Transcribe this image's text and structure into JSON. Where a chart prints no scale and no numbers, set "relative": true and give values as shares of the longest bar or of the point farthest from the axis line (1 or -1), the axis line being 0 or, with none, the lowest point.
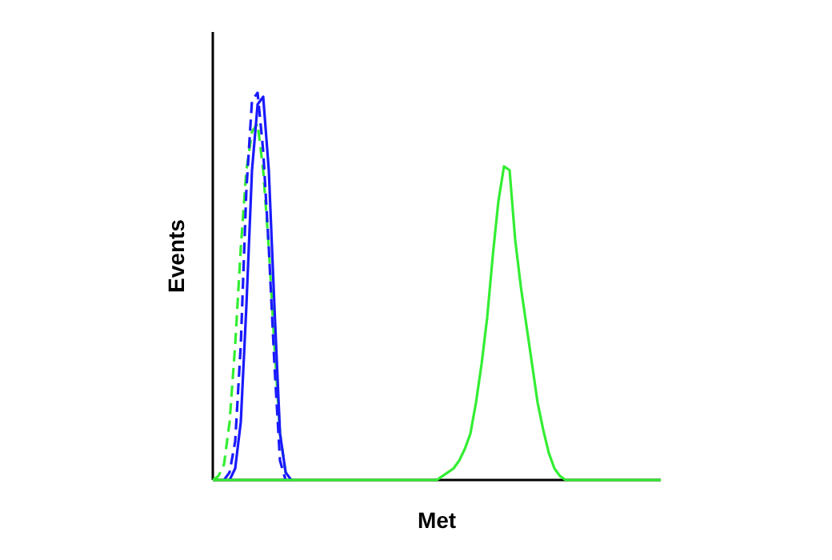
{
  "chart_data": {
    "type": "line",
    "relative": true,
    "xlabel": "Met",
    "ylabel": "Events",
    "categories": [
      null,
      null,
      null,
      null,
      null,
      null,
      null,
      null,
      null,
      null,
      null,
      null,
      null,
      null,
      null,
      null,
      null,
      null,
      null,
      null,
      null,
      null,
      null,
      null,
      null,
      null,
      null,
      null,
      null,
      null,
      null,
      null,
      null,
      null,
      null,
      null,
      null,
      null,
      null,
      null,
      null,
      null,
      null,
      null,
      null,
      null,
      null,
      null,
      null,
      null,
      null,
      null,
      null,
      null,
      null,
      null,
      null,
      null,
      null,
      null,
      null,
      null,
      null,
      null,
      null,
      null,
      null,
      null,
      null,
      null,
      null,
      null,
      null,
      null,
      null,
      null,
      null,
      null,
      null,
      null,
      null
    ],
    "series": [
      {
        "color": "#33ee33",
        "line_style": "dashed",
        "values": [
          0,
          0.01,
          0.04,
          0.15,
          0.35,
          0.6,
          0.8,
          0.9,
          0.92,
          0.8,
          0.6,
          0.35,
          0.12,
          0.02,
          0,
          null,
          null,
          null,
          null,
          null,
          null,
          null,
          null,
          null,
          null,
          null,
          null,
          null,
          null,
          null,
          null,
          null,
          null,
          null,
          null,
          null,
          null,
          null,
          null,
          null,
          null,
          null,
          null,
          null,
          null,
          null,
          null,
          null,
          null,
          null,
          null,
          null,
          null,
          null,
          null,
          null,
          null,
          null,
          null,
          null,
          null,
          null,
          null,
          null,
          null,
          null,
          null,
          null,
          null,
          null,
          null,
          null,
          null,
          null,
          null,
          null,
          null,
          null,
          null,
          null,
          null
        ]
      },
      {
        "color": "#1a1aff",
        "line_style": "dashed",
        "values": [
          null,
          null,
          0,
          0.02,
          0.1,
          0.35,
          0.75,
          0.98,
          1,
          0.85,
          0.6,
          0.3,
          0.05,
          0,
          null,
          null,
          null,
          null,
          null,
          null,
          null,
          null,
          null,
          null,
          null,
          null,
          null,
          null,
          null,
          null,
          null,
          null,
          null,
          null,
          null,
          null,
          null,
          null,
          null,
          null,
          null,
          null,
          null,
          null,
          null,
          null,
          null,
          null,
          null,
          null,
          null,
          null,
          null,
          null,
          null,
          null,
          null,
          null,
          null,
          null,
          null,
          null,
          null,
          null,
          null,
          null,
          null,
          null,
          null,
          null,
          null,
          null,
          null,
          null,
          null,
          null,
          null,
          null,
          null,
          null,
          null
        ]
      },
      {
        "color": "#1a1aff",
        "line_style": "solid",
        "values": [
          null,
          null,
          null,
          0,
          0.03,
          0.15,
          0.45,
          0.8,
          0.97,
          0.99,
          0.8,
          0.45,
          0.12,
          0.02,
          0,
          null,
          null,
          null,
          null,
          null,
          null,
          null,
          null,
          null,
          null,
          null,
          null,
          null,
          null,
          null,
          null,
          null,
          null,
          null,
          null,
          null,
          null,
          null,
          null,
          null,
          null,
          null,
          null,
          null,
          null,
          null,
          null,
          null,
          null,
          null,
          null,
          null,
          null,
          null,
          null,
          null,
          null,
          null,
          null,
          null,
          null,
          null,
          null,
          null,
          null,
          null,
          null,
          null,
          null,
          null,
          null,
          null,
          null,
          null,
          null,
          null,
          null,
          null,
          null,
          null,
          null
        ]
      },
      {
        "color": "#33ee33",
        "line_style": "solid",
        "values": [
          0,
          0,
          0,
          0,
          0,
          0,
          0,
          0,
          0,
          0,
          0,
          0,
          0,
          0,
          0,
          0,
          0,
          0,
          0,
          0,
          0,
          0,
          0,
          0,
          0,
          0,
          0,
          0,
          0,
          0,
          0,
          0,
          0,
          0,
          0,
          0,
          0,
          0,
          0,
          0,
          0,
          0.01,
          0.02,
          0.03,
          0.05,
          0.08,
          0.12,
          0.2,
          0.3,
          0.42,
          0.58,
          0.72,
          0.81,
          0.8,
          0.62,
          0.5,
          0.4,
          0.3,
          0.2,
          0.13,
          0.07,
          0.03,
          0.01,
          0,
          0,
          0,
          0,
          0,
          0,
          0,
          0,
          0,
          0,
          0,
          0,
          0,
          0,
          0,
          0,
          0,
          0
        ]
      }
    ]
  }
}
